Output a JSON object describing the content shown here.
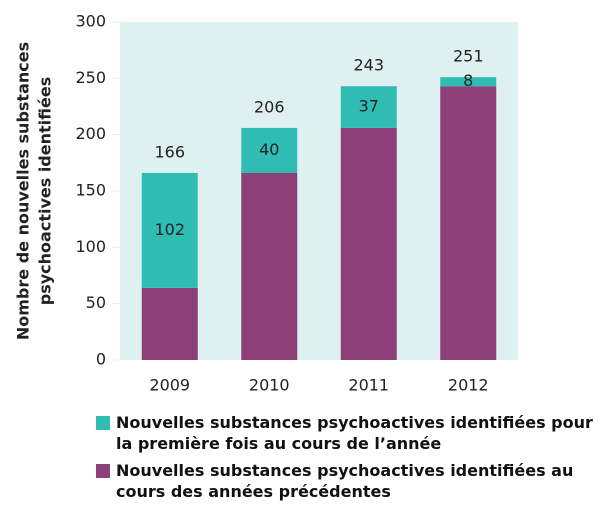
{
  "chart_data": {
    "type": "stacked_bar",
    "ylabel": [
      "Nombre de nouvelles substances",
      "psychoactives identifiées"
    ],
    "categories": [
      "2009",
      "2010",
      "2011",
      "2012"
    ],
    "series": [
      {
        "name": "Nouvelles substances psychoactives identifiées pour la première fois au cours de l’année",
        "color": "#2fbdb3",
        "values": [
          102,
          40,
          37,
          8
        ]
      },
      {
        "name": "Nouvelles substances psychoactives identifiées au cours des années précédentes",
        "color": "#8c3f78",
        "values": [
          64,
          166,
          206,
          243
        ]
      }
    ],
    "totals": [
      166,
      206,
      243,
      251
    ],
    "ylim": [
      0,
      300
    ],
    "yticks": [
      0,
      50,
      100,
      150,
      200,
      250,
      300
    ]
  }
}
